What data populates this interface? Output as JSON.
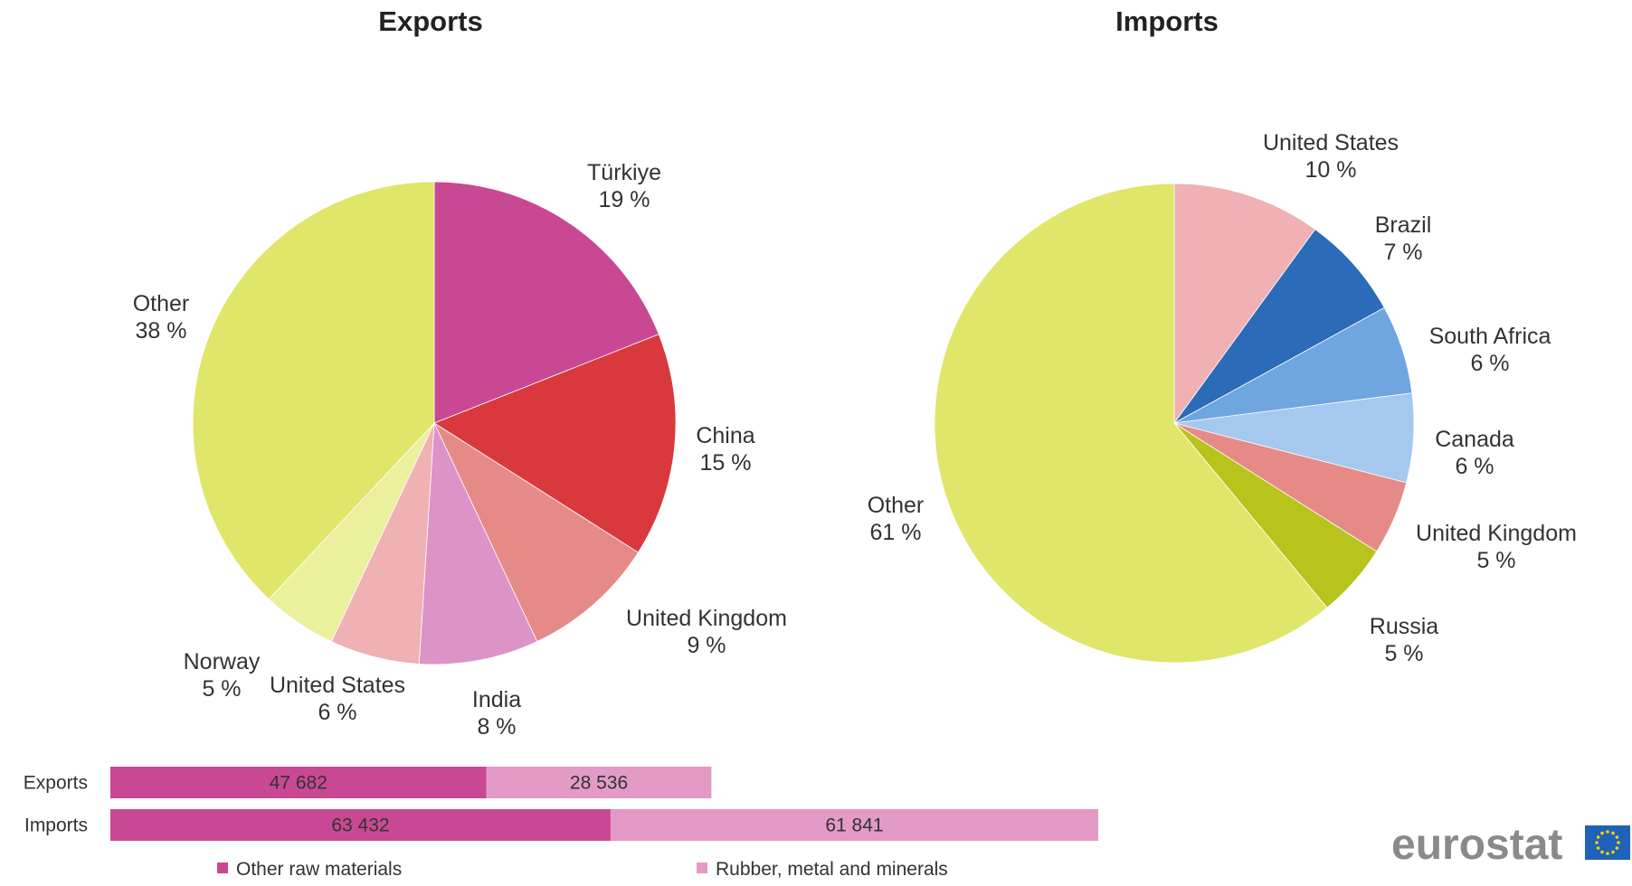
{
  "chart_data": [
    {
      "type": "pie",
      "title": "Exports",
      "slices": [
        {
          "label": "Türkiye",
          "value": 19,
          "display": "19 %",
          "color": "#c94894"
        },
        {
          "label": "China",
          "value": 15,
          "display": "15 %",
          "color": "#d9393d"
        },
        {
          "label": "United Kingdom",
          "value": 9,
          "display": "9 %",
          "color": "#e68a88"
        },
        {
          "label": "India",
          "value": 8,
          "display": "8 %",
          "color": "#dc93c8"
        },
        {
          "label": "United States",
          "value": 6,
          "display": "6 %",
          "color": "#efb1b3"
        },
        {
          "label": "Norway",
          "value": 5,
          "display": "5 %",
          "color": "#eaf09b"
        },
        {
          "label": "Other",
          "value": 38,
          "display": "38 %",
          "color": "#dfe66a"
        }
      ]
    },
    {
      "type": "pie",
      "title": "Imports",
      "slices": [
        {
          "label": "United States",
          "value": 10,
          "display": "10 %",
          "color": "#efb1b3"
        },
        {
          "label": "Brazil",
          "value": 7,
          "display": "7 %",
          "color": "#2b6bb8"
        },
        {
          "label": "South Africa",
          "value": 6,
          "display": "6 %",
          "color": "#6fa6e0"
        },
        {
          "label": "Canada",
          "value": 6,
          "display": "6 %",
          "color": "#a4c8ee"
        },
        {
          "label": "United Kingdom",
          "value": 5,
          "display": "5 %",
          "color": "#e68a88"
        },
        {
          "label": "Russia",
          "value": 5,
          "display": "5 %",
          "color": "#b8c31c"
        },
        {
          "label": "Other",
          "value": 61,
          "display": "61 %",
          "color": "#dfe66a"
        }
      ]
    },
    {
      "type": "bar",
      "orientation": "horizontal",
      "stacked": true,
      "categories": [
        "Exports",
        "Imports"
      ],
      "series": [
        {
          "name": "Other raw materials",
          "values": [
            47682,
            63432
          ],
          "labels": [
            "47 682",
            "63 432"
          ],
          "color": "#c94894"
        },
        {
          "name": "Rubber, metal and minerals",
          "values": [
            28536,
            61841
          ],
          "labels": [
            "28 536",
            "61 841"
          ],
          "color": "#e39ac6"
        }
      ],
      "legend_position": "bottom"
    }
  ],
  "branding": {
    "text": "eurostat",
    "flag_color": "#1f62b8",
    "star_color": "#f5d300"
  }
}
